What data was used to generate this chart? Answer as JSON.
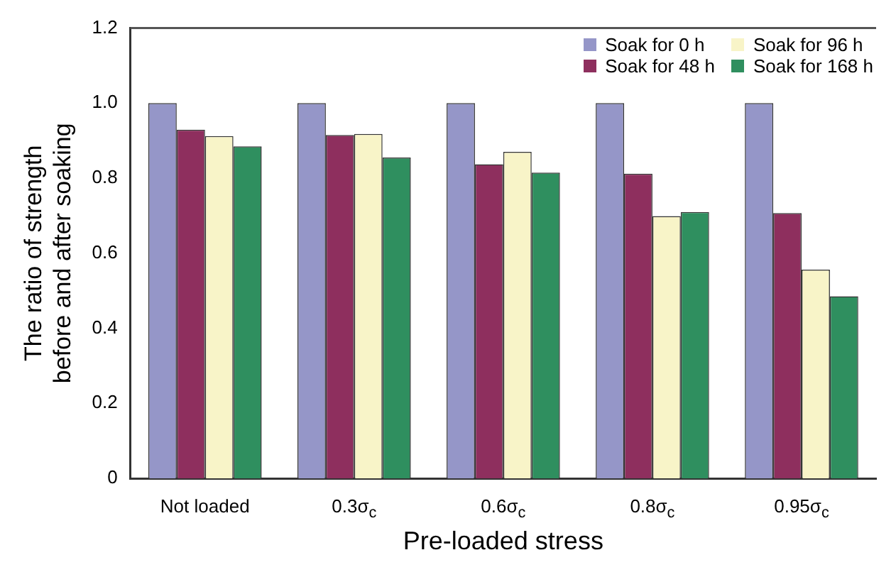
{
  "chart_data": {
    "type": "bar",
    "xlabel": "Pre-loaded stress",
    "ylabel": "The ratio of strength before and after soaking",
    "categories": [
      "Not loaded",
      "0.3σ$_{c}$",
      "0.6σ$_{c}$",
      "0.8σ$_{c}$",
      "0.95σ$_{c}$"
    ],
    "series": [
      {
        "name": "Soak for 0 h",
        "color": "#9596c8",
        "values": [
          1,
          1,
          1,
          1,
          1
        ]
      },
      {
        "name": "Soak for 48 h",
        "color": "#8e2f5e",
        "values": [
          0.929,
          0.915,
          0.837,
          0.812,
          0.707
        ]
      },
      {
        "name": "Soak for 96 h",
        "color": "#f8f4c8",
        "values": [
          0.912,
          0.918,
          0.87,
          0.699,
          0.556
        ]
      },
      {
        "name": "Soak for 168 h",
        "color": "#2f8f5f",
        "values": [
          0.885,
          0.855,
          0.815,
          0.71,
          0.485
        ]
      }
    ],
    "ylim": [
      0,
      1.2
    ],
    "yticks": [
      0,
      0.2,
      0.4,
      0.6,
      0.8,
      {
        "value": 1,
        "label": "1.0"
      },
      1.2
    ],
    "grid": false,
    "legend": "top right"
  }
}
